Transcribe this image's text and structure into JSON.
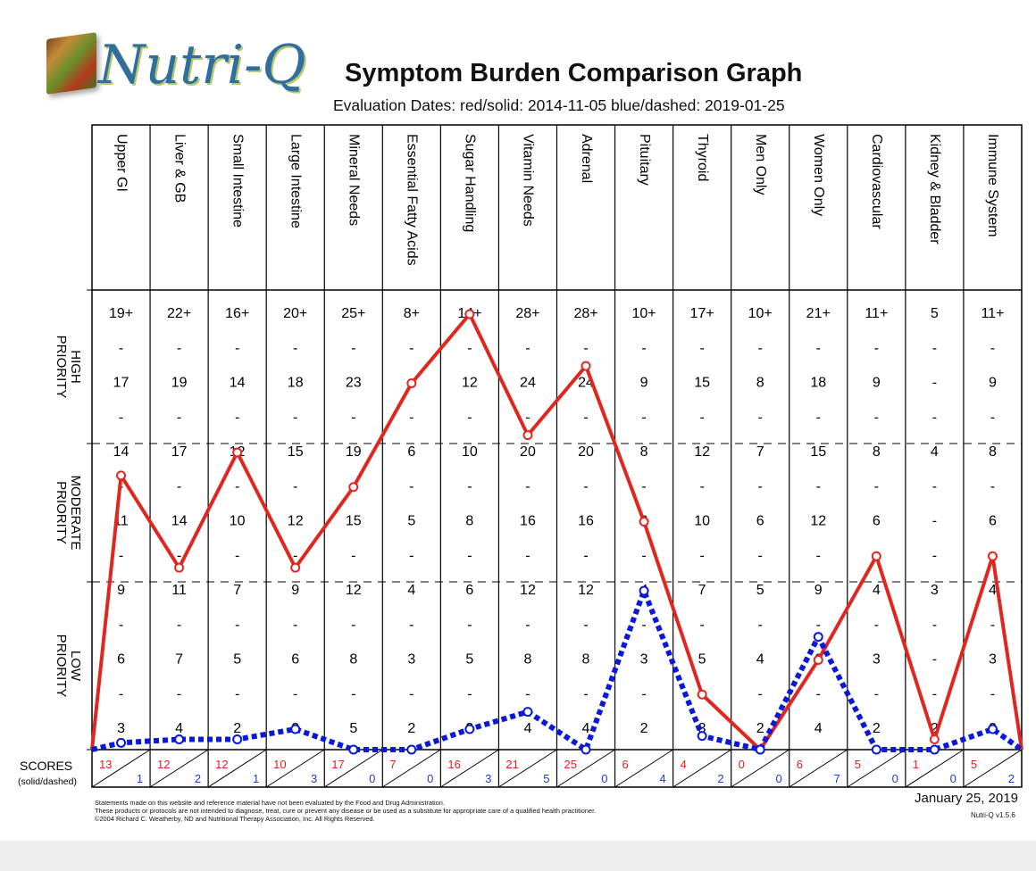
{
  "logo": {
    "text": "Nutri-Q"
  },
  "title": "Symptom Burden Comparison Graph",
  "evaluation_dates": "Evaluation Dates:   red/solid: 2014-11-05  blue/dashed: 2019-01-25",
  "priority_labels": {
    "high": [
      "HIGH",
      "PRIORITY"
    ],
    "moderate": [
      "MODERATE",
      "PRIORITY"
    ],
    "low": [
      "LOW",
      "PRIORITY"
    ]
  },
  "scores_label": "SCORES",
  "scores_sublabel": "(solid/dashed)",
  "footnote": [
    "Statements made on this website and reference material have not been evaluated by the Food and Drug Administration.",
    "These products or protocols are not intended to diagnose, treat, cure or prevent any disease or be used as a substitute for appropriate care of a qualified health practitioner.",
    "©2004 Richard C. Weatherby, ND and Nutritional Therapy Association, Inc. All Rights Reserved."
  ],
  "report_date": "January 25, 2019",
  "version": "Nutri-Q v1.5.6",
  "colors": {
    "red_series": "#e0271f",
    "blue_series": "#0a18d8",
    "grid": "#000000"
  },
  "chart_data": {
    "type": "line",
    "title": "Symptom Burden Comparison Graph",
    "categories": [
      "Upper GI",
      "Liver & GB",
      "Small Intestine",
      "Large Intestine",
      "Mineral Needs",
      "Essential Fatty Acids",
      "Sugar Handling",
      "Vitamin Needs",
      "Adrenal",
      "Pituitary",
      "Thyroid",
      "Men Only",
      "Women Only",
      "Cardiovascular",
      "Kidney & Bladder",
      "Immune System"
    ],
    "tick_labels": [
      [
        "19+",
        "-",
        "17",
        "-",
        "14",
        "-",
        "11",
        "-",
        "9",
        "-",
        "6",
        "-",
        "3"
      ],
      [
        "22+",
        "-",
        "19",
        "-",
        "17",
        "-",
        "14",
        "-",
        "11",
        "-",
        "7",
        "-",
        "4"
      ],
      [
        "16+",
        "-",
        "14",
        "-",
        "12",
        "-",
        "10",
        "-",
        "7",
        "-",
        "5",
        "-",
        "2"
      ],
      [
        "20+",
        "-",
        "18",
        "-",
        "15",
        "-",
        "12",
        "-",
        "9",
        "-",
        "6",
        "-",
        "3"
      ],
      [
        "25+",
        "-",
        "23",
        "-",
        "19",
        "-",
        "15",
        "-",
        "12",
        "-",
        "8",
        "-",
        "5"
      ],
      [
        "8+",
        "-",
        "-",
        "-",
        "6",
        "-",
        "5",
        "-",
        "4",
        "-",
        "3",
        "-",
        "2"
      ],
      [
        "14+",
        "-",
        "12",
        "-",
        "10",
        "-",
        "8",
        "-",
        "6",
        "-",
        "5",
        "-",
        "3"
      ],
      [
        "28+",
        "-",
        "24",
        "-",
        "20",
        "-",
        "16",
        "-",
        "12",
        "-",
        "8",
        "-",
        "4"
      ],
      [
        "28+",
        "-",
        "24",
        "-",
        "20",
        "-",
        "16",
        "-",
        "12",
        "-",
        "8",
        "-",
        "4"
      ],
      [
        "10+",
        "-",
        "9",
        "-",
        "8",
        "-",
        "6",
        "-",
        "4",
        "-",
        "3",
        "-",
        "2"
      ],
      [
        "17+",
        "-",
        "15",
        "-",
        "12",
        "-",
        "10",
        "-",
        "7",
        "-",
        "5",
        "-",
        "3"
      ],
      [
        "10+",
        "-",
        "8",
        "-",
        "7",
        "-",
        "6",
        "-",
        "5",
        "-",
        "4",
        "-",
        "2"
      ],
      [
        "21+",
        "-",
        "18",
        "-",
        "15",
        "-",
        "12",
        "-",
        "9",
        "-",
        "6",
        "-",
        "4"
      ],
      [
        "11+",
        "-",
        "9",
        "-",
        "8",
        "-",
        "6",
        "-",
        "4",
        "-",
        "3",
        "-",
        "2"
      ],
      [
        "5",
        "-",
        "-",
        "-",
        "4",
        "-",
        "-",
        "-",
        "3",
        "-",
        "-",
        "-",
        "2"
      ],
      [
        "11+",
        "-",
        "9",
        "-",
        "8",
        "-",
        "6",
        "-",
        "4",
        "-",
        "3",
        "-",
        "2"
      ]
    ],
    "series": [
      {
        "name": "red/solid: 2014-11-05",
        "values": [
          13,
          12,
          12,
          10,
          17,
          7,
          16,
          21,
          25,
          6,
          4,
          0,
          6,
          5,
          1,
          5
        ]
      },
      {
        "name": "blue/dashed: 2019-01-25",
        "values": [
          1,
          2,
          1,
          3,
          0,
          0,
          3,
          5,
          0,
          4,
          2,
          0,
          7,
          0,
          0,
          2
        ]
      }
    ],
    "priority_bands": [
      "HIGH PRIORITY",
      "MODERATE PRIORITY",
      "LOW PRIORITY"
    ],
    "grid": true
  }
}
